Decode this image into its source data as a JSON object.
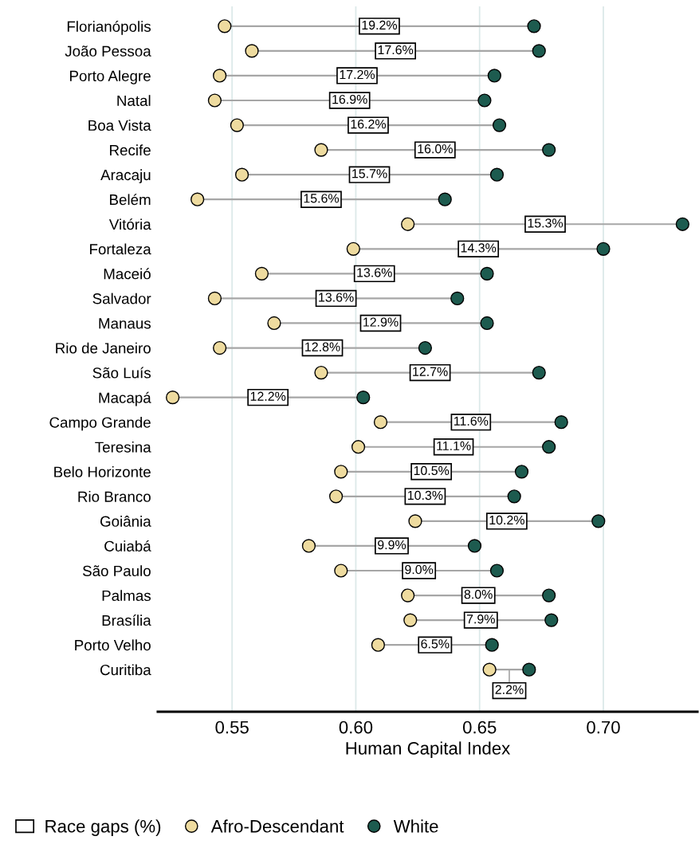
{
  "chart_data": {
    "type": "scatter",
    "orientation": "horizontal",
    "xlabel": "Human Capital Index",
    "categories": [
      "Florianópolis",
      "João Pessoa",
      "Porto Alegre",
      "Natal",
      "Boa Vista",
      "Recife",
      "Aracaju",
      "Belém",
      "Vitória",
      "Fortaleza",
      "Maceió",
      "Salvador",
      "Manaus",
      "Rio de Janeiro",
      "São Luís",
      "Macapá",
      "Campo Grande",
      "Teresina",
      "Belo Horizonte",
      "Rio Branco",
      "Goiânia",
      "Cuiabá",
      "São Paulo",
      "Palmas",
      "Brasília",
      "Porto Velho",
      "Curitiba"
    ],
    "series": [
      {
        "name": "Race gaps (%)",
        "type": "other",
        "color": "#ffffff",
        "values": [
          null,
          null,
          null,
          null,
          null,
          null,
          null,
          null,
          null,
          null,
          null,
          null,
          null,
          null,
          null,
          null,
          null,
          null,
          null,
          null,
          null,
          null,
          null,
          null,
          null,
          null,
          null
        ]
      },
      {
        "name": "Afro-Descendant",
        "color": "#eedb9f",
        "values": [
          0.547,
          0.558,
          0.545,
          0.543,
          0.552,
          0.586,
          0.554,
          0.536,
          0.621,
          0.599,
          0.562,
          0.543,
          0.567,
          0.545,
          0.586,
          0.526,
          0.61,
          0.601,
          0.594,
          0.592,
          0.624,
          0.581,
          0.594,
          0.621,
          0.622,
          0.609,
          0.654
        ]
      },
      {
        "name": "White",
        "color": "#1d5b4f",
        "values": [
          0.672,
          0.674,
          0.656,
          0.652,
          0.658,
          0.678,
          0.657,
          0.636,
          0.732,
          0.7,
          0.653,
          0.641,
          0.653,
          0.628,
          0.674,
          0.603,
          0.683,
          0.678,
          0.667,
          0.664,
          0.698,
          0.648,
          0.657,
          0.678,
          0.679,
          0.655,
          0.67
        ]
      }
    ],
    "annotations": [
      "19.2%",
      "17.6%",
      "17.2%",
      "16.9%",
      "16.2%",
      "16.0%",
      "15.7%",
      "15.6%",
      "15.3%",
      "14.3%",
      "13.6%",
      "13.6%",
      "12.9%",
      "12.8%",
      "12.7%",
      "12.2%",
      "11.6%",
      "11.1%",
      "10.5%",
      "10.3%",
      "10.2%",
      "9.9%",
      "9.0%",
      "8.0%",
      "7.9%",
      "6.5%",
      "2.2%"
    ],
    "xlim": [
      0.52,
      0.738
    ],
    "xticks": [
      0.55,
      {
        "value": 0.6,
        "label": "0.60"
      },
      0.65,
      {
        "value": 0.7,
        "label": "0.70"
      }
    ],
    "grid": "x",
    "legend": "bottom",
    "marker": "circle"
  }
}
